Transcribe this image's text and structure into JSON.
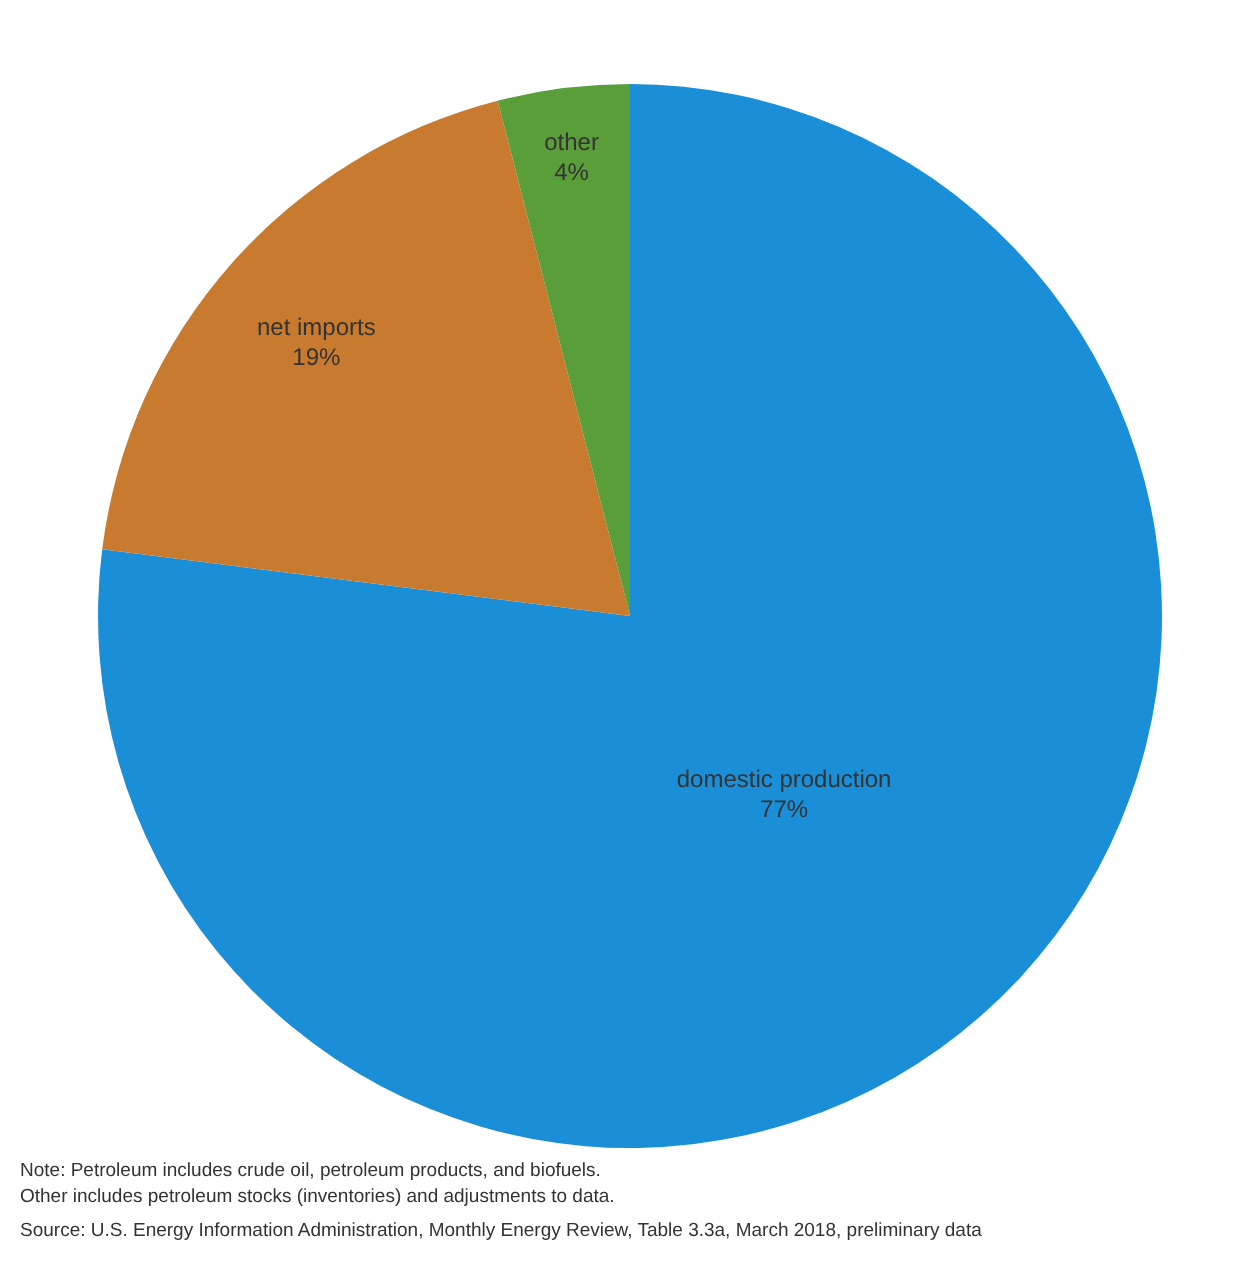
{
  "chart_data": {
    "type": "pie",
    "categories": [
      "domestic production",
      "net imports",
      "other"
    ],
    "values": [
      77,
      19,
      4
    ],
    "colors": [
      "#1a8fd8",
      "#c87a2e",
      "#5a9e3a"
    ],
    "value_labels": [
      "77%",
      "19%",
      "4%"
    ],
    "annotations": [
      "Note: Petroleum includes crude oil, petroleum products, and biofuels.",
      "Other includes petroleum stocks (inventories) and adjustments to data.",
      "Source: U.S. Energy Information Administration, Monthly Energy Review, Table 3.3a, March 2018, preliminary data"
    ]
  }
}
